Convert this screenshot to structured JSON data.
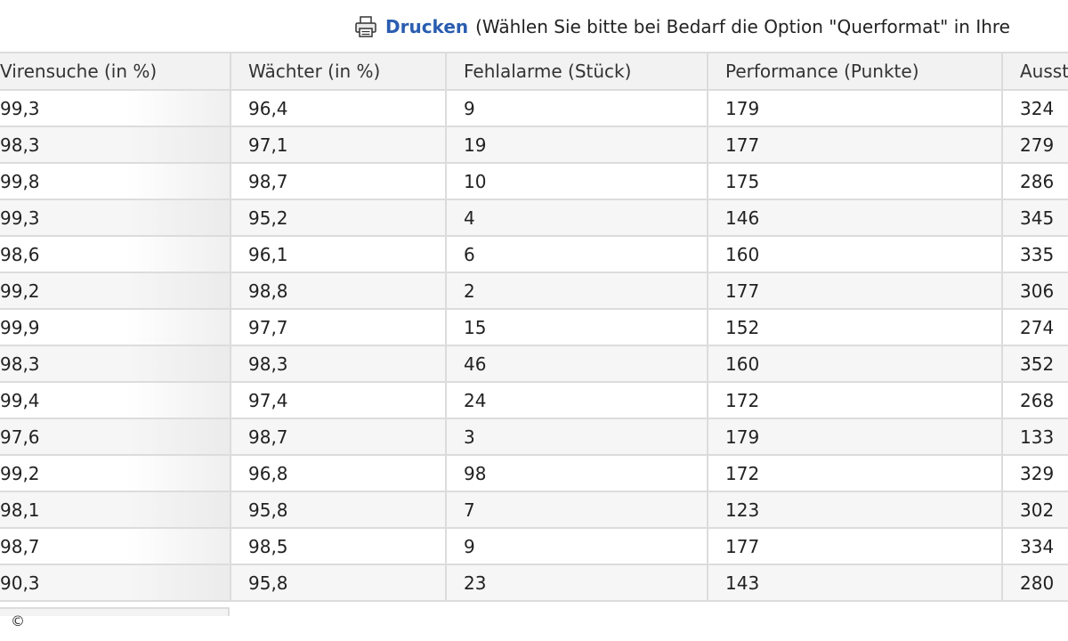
{
  "print": {
    "link_label": "Drucken",
    "hint": "(Wählen Sie bitte bei Bedarf die Option \"Querformat\" in Ihre"
  },
  "table": {
    "headers": [
      "Virensuche (in %)",
      "Wächter (in %)",
      "Fehlalarme (Stück)",
      "Performance (Punkte)",
      "Ausst"
    ],
    "rows": [
      [
        "99,3",
        "96,4",
        "9",
        "179",
        "324"
      ],
      [
        "98,3",
        "97,1",
        "19",
        "177",
        "279"
      ],
      [
        "99,8",
        "98,7",
        "10",
        "175",
        "286"
      ],
      [
        "99,3",
        "95,2",
        "4",
        "146",
        "345"
      ],
      [
        "98,6",
        "96,1",
        "6",
        "160",
        "335"
      ],
      [
        "99,2",
        "98,8",
        "2",
        "177",
        "306"
      ],
      [
        "99,9",
        "97,7",
        "15",
        "152",
        "274"
      ],
      [
        "98,3",
        "98,3",
        "46",
        "160",
        "352"
      ],
      [
        "99,4",
        "97,4",
        "24",
        "172",
        "268"
      ],
      [
        "97,6",
        "98,7",
        "3",
        "179",
        "133"
      ],
      [
        "99,2",
        "96,8",
        "98",
        "172",
        "329"
      ],
      [
        "98,1",
        "95,8",
        "7",
        "123",
        "302"
      ],
      [
        "98,7",
        "98,5",
        "9",
        "177",
        "334"
      ],
      [
        "90,3",
        "95,8",
        "23",
        "143",
        "280"
      ]
    ]
  },
  "copyright": "©",
  "icons": {
    "print": "printer-icon"
  },
  "colors": {
    "link": "#2a5db0",
    "border": "#dcdcdc",
    "header_bg": "#f2f2f2"
  }
}
